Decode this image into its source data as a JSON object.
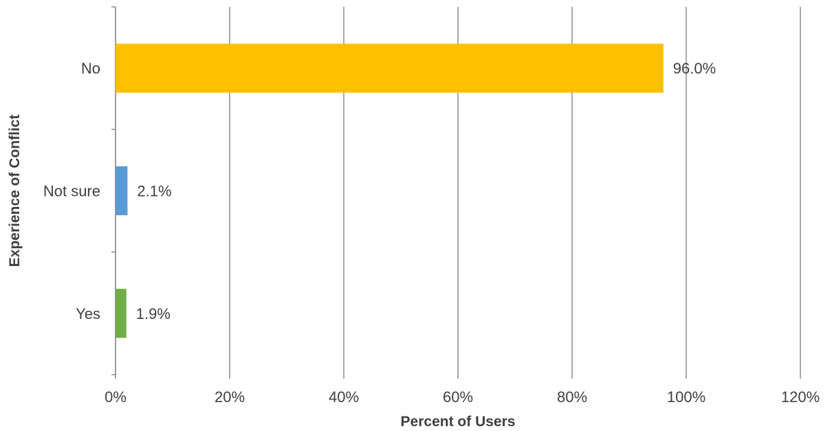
{
  "chart_data": {
    "type": "bar",
    "orientation": "horizontal",
    "categories": [
      "No",
      "Not sure",
      "Yes"
    ],
    "values": [
      96.0,
      2.1,
      1.9
    ],
    "data_labels": [
      "96.0%",
      "2.1%",
      "1.9%"
    ],
    "colors": [
      "#FFC000",
      "#5B9BD5",
      "#70AD47"
    ],
    "xlabel": "Percent of Users",
    "ylabel": "Experience of Conflict",
    "xlim": [
      0,
      120
    ],
    "xticks": [
      0,
      20,
      40,
      60,
      80,
      100,
      120
    ],
    "xtick_labels": [
      "0%",
      "20%",
      "40%",
      "60%",
      "80%",
      "100%",
      "120%"
    ],
    "grid": "vertical",
    "legend": "none"
  }
}
